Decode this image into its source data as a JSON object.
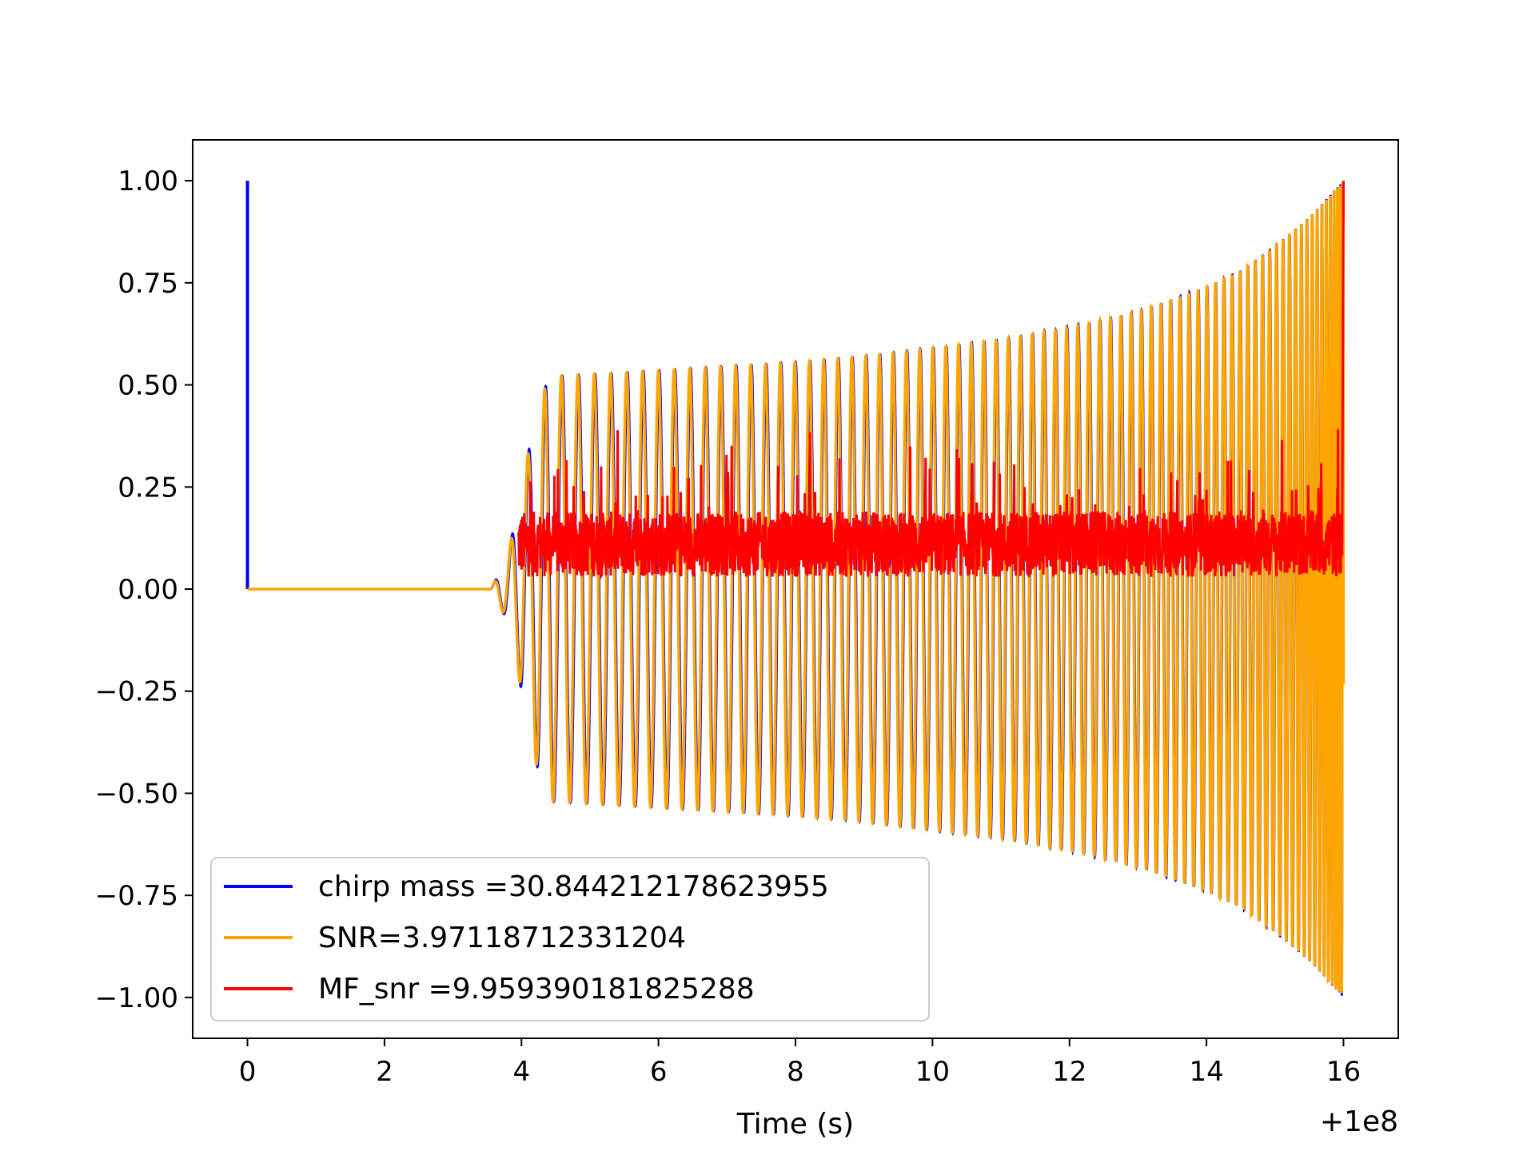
{
  "chart_data": {
    "type": "line",
    "title": "",
    "xlabel": "Time (s)",
    "ylabel": "",
    "x_offset_label": "+1e8",
    "xlim": [
      -0.8,
      16.8
    ],
    "ylim": [
      -1.1,
      1.1
    ],
    "x_ticks": [
      0,
      2,
      4,
      6,
      8,
      10,
      12,
      14,
      16
    ],
    "x_tick_labels": [
      "0",
      "2",
      "4",
      "6",
      "8",
      "10",
      "12",
      "14",
      "16"
    ],
    "y_ticks": [
      -1.0,
      -0.75,
      -0.5,
      -0.25,
      0.0,
      0.25,
      0.5,
      0.75,
      1.0
    ],
    "y_tick_labels": [
      "−1.00",
      "−0.75",
      "−0.50",
      "−0.25",
      "0.00",
      "0.25",
      "0.50",
      "0.75",
      "1.00"
    ],
    "grid": false,
    "legend_position": "lower-left",
    "series": [
      {
        "name": "chirp mass =30.844212178623955",
        "color": "#0000ff",
        "description_points": {
          "spike_x": 0.0,
          "spike_y": 1.0,
          "flat_start": 0.0,
          "onset": 3.55,
          "envelope_x": [
            3.55,
            3.8,
            4.0,
            4.2,
            4.4,
            5,
            6,
            7,
            8,
            9,
            10,
            11,
            12,
            13,
            14,
            14.5,
            15,
            15.5,
            16
          ],
          "envelope_y": [
            0.0,
            0.08,
            0.25,
            0.42,
            0.52,
            0.525,
            0.535,
            0.545,
            0.555,
            0.57,
            0.59,
            0.61,
            0.64,
            0.68,
            0.74,
            0.78,
            0.84,
            0.91,
            1.0
          ]
        }
      },
      {
        "name": "SNR=3.97118712331204",
        "color": "#ffa500",
        "description_points": {
          "flat_start": 0.0,
          "onset": 3.55,
          "end": 16.0
        }
      },
      {
        "name": "MF_snr =9.959390181825288",
        "color": "#ff0000",
        "description_points": {
          "start": 3.95,
          "end": 16.0,
          "baseline": 0.11,
          "final_peak_x": 16.0,
          "final_peak_y": 1.0
        }
      }
    ]
  }
}
